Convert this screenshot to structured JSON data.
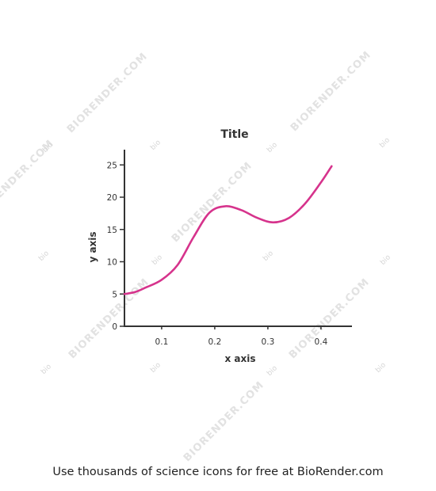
{
  "chart_data": {
    "type": "line",
    "title": "Title",
    "xlabel": "x axis",
    "ylabel": "y axis",
    "xlim": [
      0.03,
      0.43
    ],
    "ylim": [
      0,
      27
    ],
    "x_ticks": [
      0.1,
      0.2,
      0.3,
      0.4
    ],
    "y_ticks": [
      0,
      5,
      10,
      15,
      20,
      25
    ],
    "grid": false,
    "series": [
      {
        "color": "#d6338c",
        "x": [
          0.03,
          0.05,
          0.07,
          0.1,
          0.13,
          0.16,
          0.19,
          0.22,
          0.25,
          0.28,
          0.31,
          0.34,
          0.37,
          0.4,
          0.42
        ],
        "y": [
          5.0,
          5.3,
          6.0,
          7.2,
          9.5,
          13.8,
          17.6,
          18.6,
          18.0,
          16.8,
          16.1,
          16.8,
          19.0,
          22.3,
          24.8
        ]
      }
    ]
  },
  "colors": {
    "axis": "#333333",
    "line": "#d6338c",
    "watermark": "#e2e2e2"
  },
  "watermark": {
    "brand": "BIORENDER.COM",
    "bio": "bio"
  },
  "footer": {
    "text": "Use thousands of science icons for free at BioRender.com"
  }
}
